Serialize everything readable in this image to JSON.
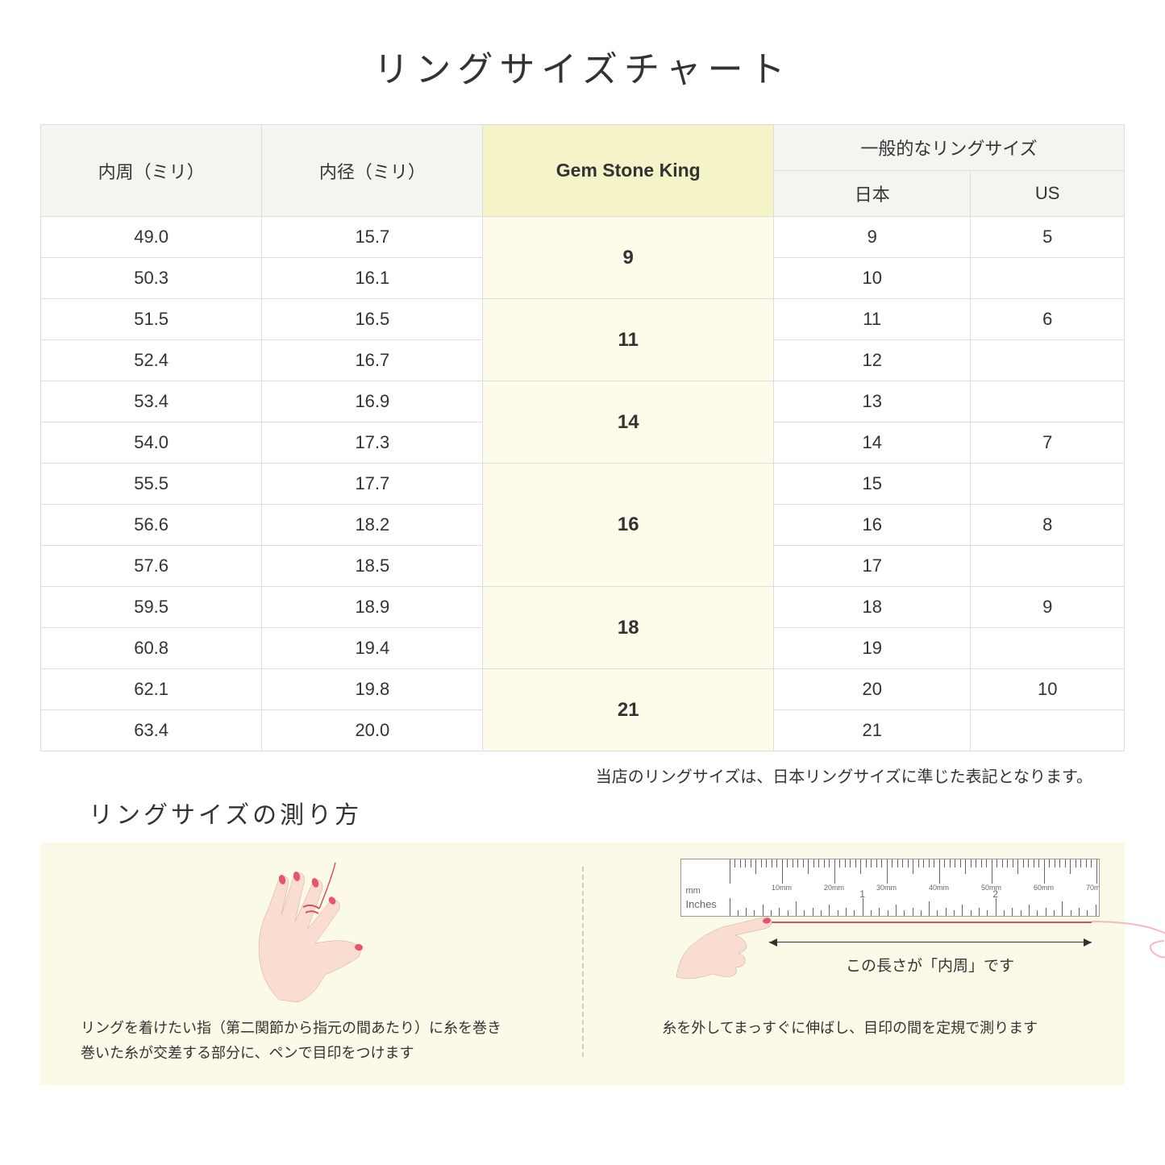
{
  "title": "リングサイズチャート",
  "headers": {
    "col1": "内周（ミリ）",
    "col2": "内径（ミリ）",
    "col3": "Gem Stone King",
    "group": "一般的なリングサイズ",
    "jp": "日本",
    "us": "US"
  },
  "groups": [
    {
      "gem": "9",
      "rows": [
        {
          "c": "49.0",
          "d": "15.7",
          "jp": "9",
          "us": "5"
        },
        {
          "c": "50.3",
          "d": "16.1",
          "jp": "10",
          "us": ""
        }
      ]
    },
    {
      "gem": "11",
      "rows": [
        {
          "c": "51.5",
          "d": "16.5",
          "jp": "11",
          "us": "6"
        },
        {
          "c": "52.4",
          "d": "16.7",
          "jp": "12",
          "us": ""
        }
      ]
    },
    {
      "gem": "14",
      "rows": [
        {
          "c": "53.4",
          "d": "16.9",
          "jp": "13",
          "us": ""
        },
        {
          "c": "54.0",
          "d": "17.3",
          "jp": "14",
          "us": "7"
        }
      ]
    },
    {
      "gem": "16",
      "rows": [
        {
          "c": "55.5",
          "d": "17.7",
          "jp": "15",
          "us": ""
        },
        {
          "c": "56.6",
          "d": "18.2",
          "jp": "16",
          "us": "8"
        },
        {
          "c": "57.6",
          "d": "18.5",
          "jp": "17",
          "us": ""
        }
      ]
    },
    {
      "gem": "18",
      "rows": [
        {
          "c": "59.5",
          "d": "18.9",
          "jp": "18",
          "us": "9"
        },
        {
          "c": "60.8",
          "d": "19.4",
          "jp": "19",
          "us": ""
        }
      ]
    },
    {
      "gem": "21",
      "rows": [
        {
          "c": "62.1",
          "d": "19.8",
          "jp": "20",
          "us": "10"
        },
        {
          "c": "63.4",
          "d": "20.0",
          "jp": "21",
          "us": ""
        }
      ]
    }
  ],
  "note": "当店のリングサイズは、日本リングサイズに準じた表記となります。",
  "subtitle": "リングサイズの測り方",
  "step1a": "リングを着けたい指（第二関節から指元の間あたり）に糸を巻き",
  "step1b": "巻いた糸が交差する部分に、ペンで目印をつけます",
  "step2_dim": "この長さが「内周」です",
  "step2": "糸を外してまっすぐに伸ばし、目印の間を定規で測ります",
  "ruler_mm": "mm",
  "ruler_in": "Inches",
  "colors": {
    "header_bg": "#f5f5f0",
    "gem_header_bg": "#f5f3c8",
    "gem_cell_bg": "#fdfceb",
    "border": "#dddddd",
    "instructions_bg": "#fbf9e8",
    "hand_fill": "#f8ddd0",
    "nail": "#e8546b",
    "thread": "#d94f5c"
  }
}
